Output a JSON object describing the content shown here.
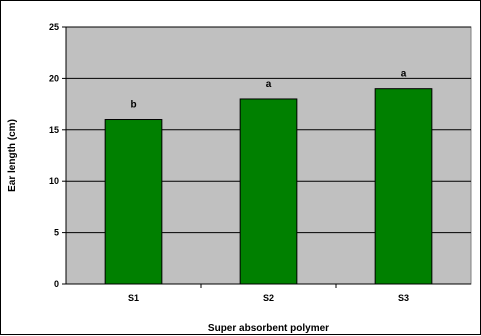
{
  "chart_data": {
    "type": "bar",
    "categories": [
      "S1",
      "S2",
      "S3"
    ],
    "values": [
      16,
      18,
      19
    ],
    "annotations": [
      "b",
      "a",
      "a"
    ],
    "title": "",
    "xlabel": "Super absorbent polymer",
    "ylabel": "Ear length (cm)",
    "ylim": [
      0,
      25
    ],
    "yticks": [
      0,
      5,
      10,
      15,
      20,
      25
    ],
    "grid": true,
    "legend": "none",
    "colors": {
      "bar": "#008000",
      "bar_edge": "#000000",
      "plot_bg": "#c0c0c0",
      "grid": "#000000"
    }
  }
}
